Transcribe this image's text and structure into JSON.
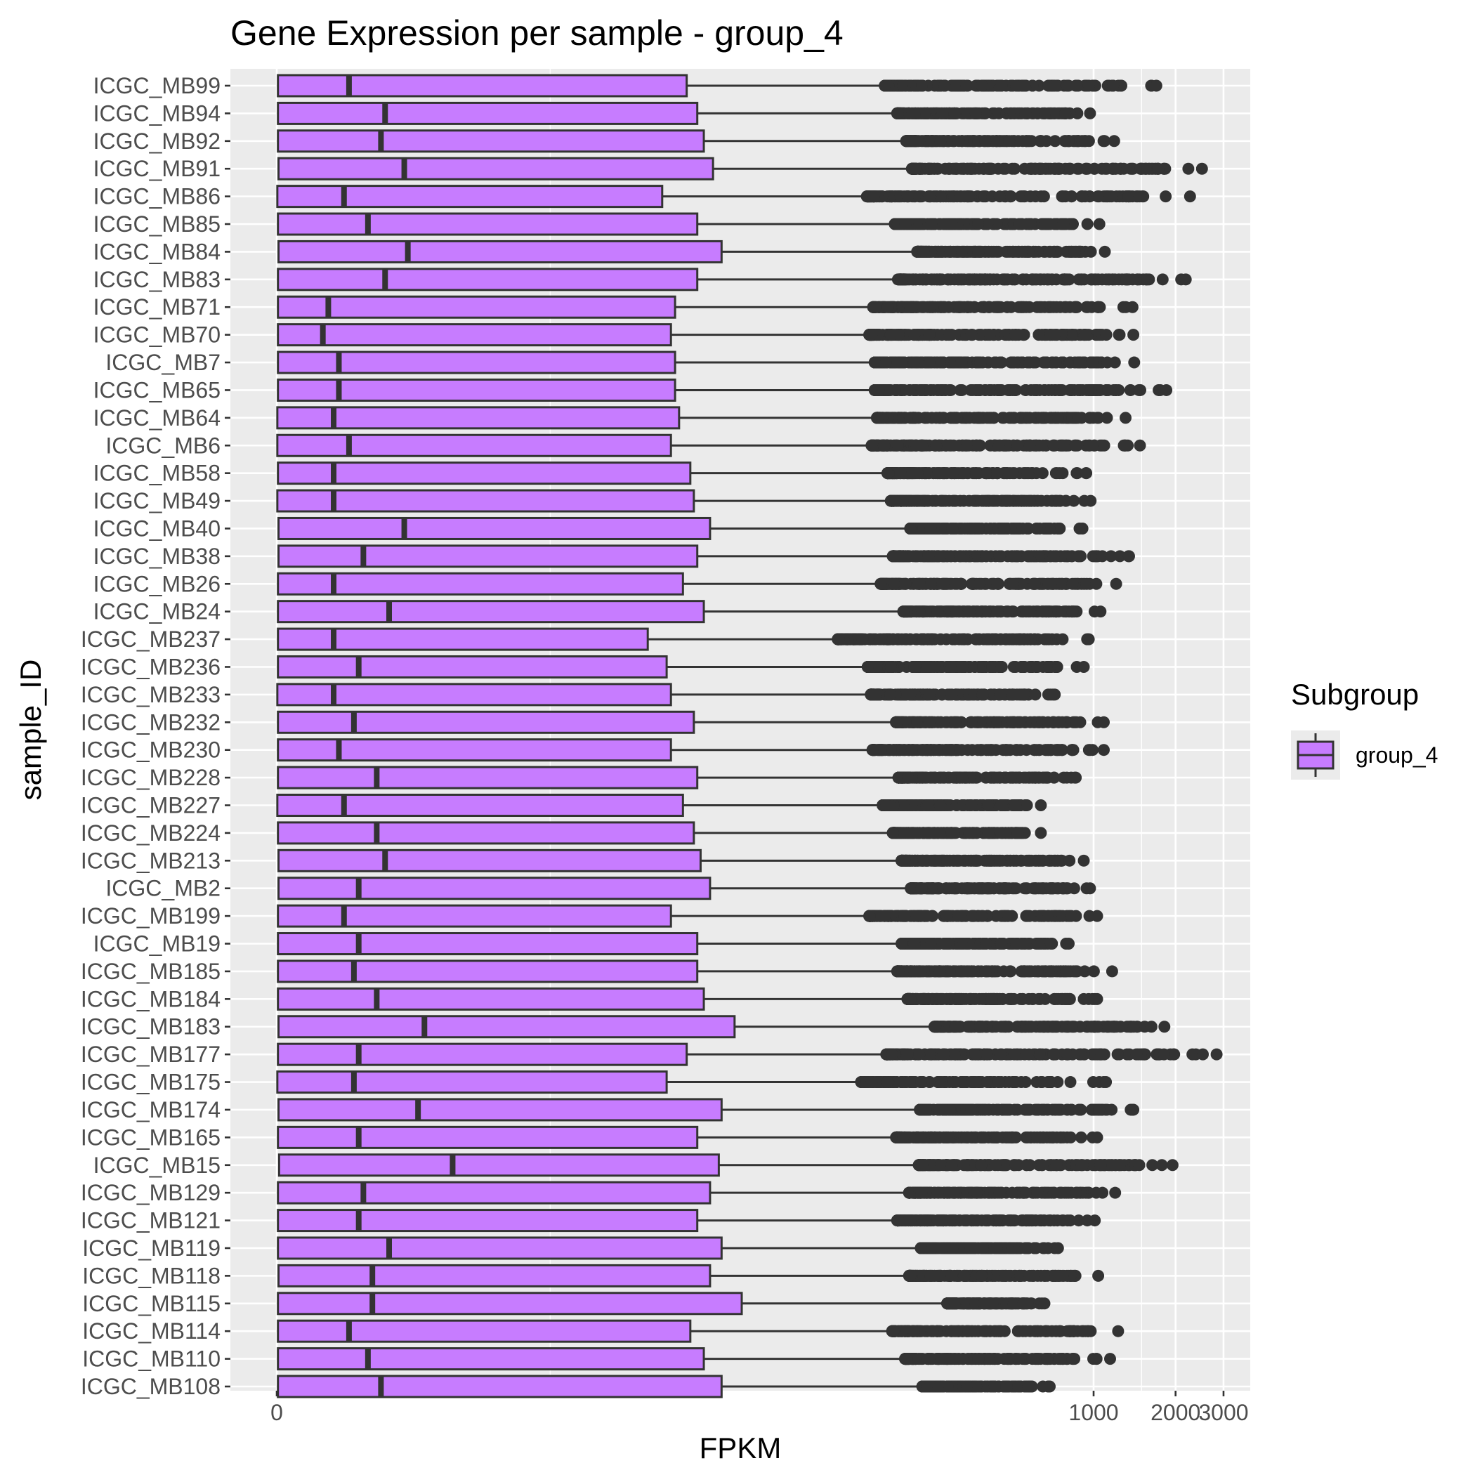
{
  "chart_data": {
    "type": "boxplot",
    "orientation": "horizontal",
    "title": "Gene Expression per sample - group_4",
    "xlabel": "FPKM",
    "ylabel": "sample_ID",
    "x_scale": "pseudo-log",
    "x_ticks": [
      {
        "value": 0,
        "label": "0"
      },
      {
        "value": 1000,
        "label": "1000"
      },
      {
        "value": 2000,
        "label": "2000"
      },
      {
        "value": 3000,
        "label": "3000"
      }
    ],
    "grid": true,
    "legend": {
      "title": "Subgroup",
      "position": "right",
      "entries": [
        {
          "label": "group_4",
          "color": "#c77cff"
        }
      ]
    },
    "colors": {
      "box_fill": "#c77cff",
      "box_stroke": "#333333",
      "outlier": "#333333",
      "panel": "#ebebeb",
      "grid": "#ffffff"
    },
    "samples": [
      {
        "id": "ICGC_MB99",
        "q1": 0.02,
        "median": 1.3,
        "q3": 32,
        "whisker_high": 171,
        "max": 1700
      },
      {
        "id": "ICGC_MB94",
        "q1": 0.02,
        "median": 2.1,
        "q3": 35,
        "whisker_high": 190,
        "max": 970
      },
      {
        "id": "ICGC_MB92",
        "q1": 0.02,
        "median": 2.0,
        "q3": 37,
        "whisker_high": 205,
        "max": 1190
      },
      {
        "id": "ICGC_MB91",
        "q1": 0.03,
        "median": 2.6,
        "q3": 40,
        "whisker_high": 215,
        "max": 2500
      },
      {
        "id": "ICGC_MB86",
        "q1": 0.01,
        "median": 1.2,
        "q3": 26,
        "whisker_high": 147,
        "max": 2260
      },
      {
        "id": "ICGC_MB85",
        "q1": 0.02,
        "median": 1.7,
        "q3": 35,
        "whisker_high": 186,
        "max": 1050
      },
      {
        "id": "ICGC_MB84",
        "q1": 0.03,
        "median": 2.7,
        "q3": 43,
        "whisker_high": 225,
        "max": 1100
      },
      {
        "id": "ICGC_MB83",
        "q1": 0.02,
        "median": 2.1,
        "q3": 35,
        "whisker_high": 190,
        "max": 2180
      },
      {
        "id": "ICGC_MB71",
        "q1": 0.02,
        "median": 0.9,
        "q3": 29,
        "whisker_high": 155,
        "max": 1390
      },
      {
        "id": "ICGC_MB70",
        "q1": 0.02,
        "median": 0.8,
        "q3": 28,
        "whisker_high": 150,
        "max": 1400
      },
      {
        "id": "ICGC_MB7",
        "q1": 0.02,
        "median": 1.1,
        "q3": 29,
        "whisker_high": 157,
        "max": 1410
      },
      {
        "id": "ICGC_MB65",
        "q1": 0.02,
        "median": 1.1,
        "q3": 29,
        "whisker_high": 157,
        "max": 1850
      },
      {
        "id": "ICGC_MB64",
        "q1": 0.01,
        "median": 1.0,
        "q3": 30,
        "whisker_high": 160,
        "max": 1310
      },
      {
        "id": "ICGC_MB6",
        "q1": 0.01,
        "median": 1.3,
        "q3": 28,
        "whisker_high": 153,
        "max": 1480
      },
      {
        "id": "ICGC_MB58",
        "q1": 0.02,
        "median": 1.0,
        "q3": 33,
        "whisker_high": 175,
        "max": 940
      },
      {
        "id": "ICGC_MB49",
        "q1": 0.01,
        "median": 1.0,
        "q3": 34,
        "whisker_high": 180,
        "max": 975
      },
      {
        "id": "ICGC_MB40",
        "q1": 0.03,
        "median": 2.6,
        "q3": 39,
        "whisker_high": 212,
        "max": 910
      },
      {
        "id": "ICGC_MB38",
        "q1": 0.03,
        "median": 1.6,
        "q3": 35,
        "whisker_high": 183,
        "max": 1350
      },
      {
        "id": "ICGC_MB26",
        "q1": 0.02,
        "median": 1.0,
        "q3": 31,
        "whisker_high": 165,
        "max": 1210
      },
      {
        "id": "ICGC_MB24",
        "q1": 0.02,
        "median": 2.2,
        "q3": 37,
        "whisker_high": 200,
        "max": 1060
      },
      {
        "id": "ICGC_MB237",
        "q1": 0.02,
        "median": 1.0,
        "q3": 23,
        "whisker_high": 115,
        "max": 960
      },
      {
        "id": "ICGC_MB236",
        "q1": 0.02,
        "median": 1.5,
        "q3": 27,
        "whisker_high": 148,
        "max": 920
      },
      {
        "id": "ICGC_MB233",
        "q1": 0.01,
        "median": 1.0,
        "q3": 28,
        "whisker_high": 152,
        "max": 720
      },
      {
        "id": "ICGC_MB232",
        "q1": 0.02,
        "median": 1.4,
        "q3": 34,
        "whisker_high": 188,
        "max": 1090
      },
      {
        "id": "ICGC_MB230",
        "q1": 0.02,
        "median": 1.1,
        "q3": 28,
        "whisker_high": 154,
        "max": 1090
      },
      {
        "id": "ICGC_MB228",
        "q1": 0.02,
        "median": 1.9,
        "q3": 35,
        "whisker_high": 192,
        "max": 860
      },
      {
        "id": "ICGC_MB227",
        "q1": 0.01,
        "median": 1.2,
        "q3": 31,
        "whisker_high": 168,
        "max": 640
      },
      {
        "id": "ICGC_MB224",
        "q1": 0.02,
        "median": 1.9,
        "q3": 34,
        "whisker_high": 183,
        "max": 640
      },
      {
        "id": "ICGC_MB213",
        "q1": 0.03,
        "median": 2.1,
        "q3": 36,
        "whisker_high": 197,
        "max": 920
      },
      {
        "id": "ICGC_MB2",
        "q1": 0.03,
        "median": 1.5,
        "q3": 39,
        "whisker_high": 213,
        "max": 970
      },
      {
        "id": "ICGC_MB199",
        "q1": 0.02,
        "median": 1.2,
        "q3": 28,
        "whisker_high": 150,
        "max": 1030
      },
      {
        "id": "ICGC_MB19",
        "q1": 0.02,
        "median": 1.5,
        "q3": 35,
        "whisker_high": 197,
        "max": 810
      },
      {
        "id": "ICGC_MB185",
        "q1": 0.02,
        "median": 1.4,
        "q3": 35,
        "whisker_high": 190,
        "max": 1170
      },
      {
        "id": "ICGC_MB184",
        "q1": 0.02,
        "median": 1.9,
        "q3": 37,
        "whisker_high": 207,
        "max": 1030
      },
      {
        "id": "ICGC_MB183",
        "q1": 0.03,
        "median": 3.2,
        "q3": 48,
        "whisker_high": 260,
        "max": 1820
      },
      {
        "id": "ICGC_MB177",
        "q1": 0.02,
        "median": 1.5,
        "q3": 32,
        "whisker_high": 173,
        "max": 2830
      },
      {
        "id": "ICGC_MB175",
        "q1": 0.01,
        "median": 1.4,
        "q3": 27,
        "whisker_high": 140,
        "max": 1110
      },
      {
        "id": "ICGC_MB174",
        "q1": 0.03,
        "median": 3.0,
        "q3": 43,
        "whisker_high": 230,
        "max": 1400
      },
      {
        "id": "ICGC_MB165",
        "q1": 0.02,
        "median": 1.5,
        "q3": 35,
        "whisker_high": 188,
        "max": 1030
      },
      {
        "id": "ICGC_MB15",
        "q1": 0.04,
        "median": 4.2,
        "q3": 42,
        "whisker_high": 228,
        "max": 1950
      },
      {
        "id": "ICGC_MB129",
        "q1": 0.02,
        "median": 1.6,
        "q3": 39,
        "whisker_high": 210,
        "max": 1200
      },
      {
        "id": "ICGC_MB121",
        "q1": 0.02,
        "median": 1.5,
        "q3": 35,
        "whisker_high": 190,
        "max": 1010
      },
      {
        "id": "ICGC_MB119",
        "q1": 0.02,
        "median": 2.2,
        "q3": 43,
        "whisker_high": 232,
        "max": 740
      },
      {
        "id": "ICGC_MB118",
        "q1": 0.03,
        "median": 1.8,
        "q3": 39,
        "whisker_high": 210,
        "max": 1040
      },
      {
        "id": "ICGC_MB115",
        "q1": 0.02,
        "median": 1.8,
        "q3": 51,
        "whisker_high": 290,
        "max": 660
      },
      {
        "id": "ICGC_MB114",
        "q1": 0.02,
        "median": 1.3,
        "q3": 33,
        "whisker_high": 182,
        "max": 1230
      },
      {
        "id": "ICGC_MB110",
        "q1": 0.02,
        "median": 1.7,
        "q3": 37,
        "whisker_high": 203,
        "max": 1150
      },
      {
        "id": "ICGC_MB108",
        "q1": 0.02,
        "median": 2.0,
        "q3": 43,
        "whisker_high": 235,
        "max": 690
      }
    ]
  }
}
